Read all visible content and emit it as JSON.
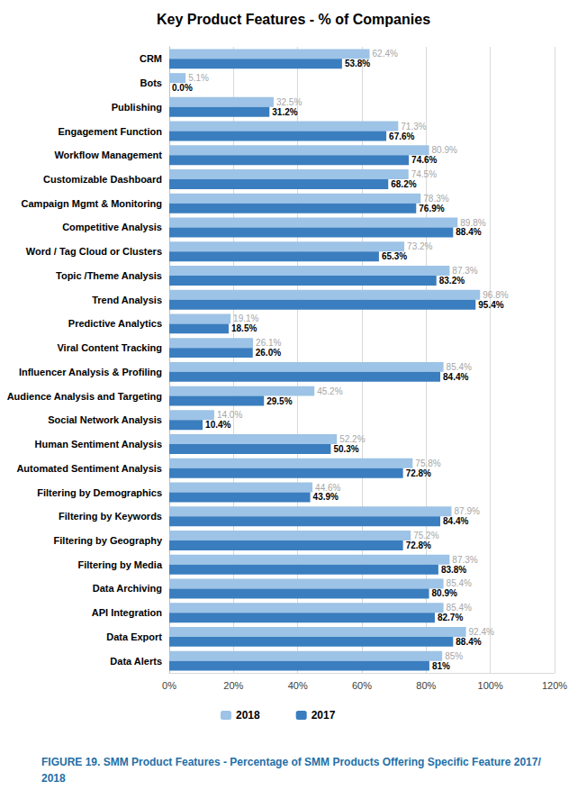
{
  "chart_data": {
    "type": "bar",
    "title": "Key Product Features - % of Companies",
    "annotations": [
      "FIGURE 19. SMM Product Features - Percentage of SMM Products Offering Specific Feature 2017/2018"
    ],
    "orientation": "horizontal",
    "grid": true,
    "legend": "bottom",
    "data_labels": true,
    "categories": [
      "CRM",
      "Bots",
      "Publishing",
      "Engagement Function",
      "Workflow Management",
      "Customizable Dashboard",
      "Campaign Mgmt & Monitoring",
      "Competitive Analysis",
      "Word / Tag Cloud or Clusters",
      "Topic /Theme Analysis",
      "Trend Analysis",
      "Predictive Analytics",
      "Viral Content Tracking",
      "Influencer Analysis & Profiling",
      "Audience Analysis and Targeting",
      "Social Network Analysis",
      "Human Sentiment Analysis",
      "Automated Sentiment Analysis",
      "Filtering by Demographics",
      "Filtering by Keywords",
      "Filtering by Geography",
      "Filtering by Media",
      "Data Archiving",
      "API Integration",
      "Data Export",
      "Data Alerts"
    ],
    "series": [
      {
        "name": "2018",
        "color": "#9dc3e6",
        "values": [
          62.4,
          5.1,
          32.5,
          71.3,
          80.9,
          74.5,
          78.3,
          89.8,
          73.2,
          87.3,
          96.8,
          19.1,
          26.1,
          85.4,
          45.2,
          14.0,
          52.2,
          75.8,
          44.6,
          87.9,
          75.2,
          87.3,
          85.4,
          85.4,
          92.4,
          85
        ],
        "value_labels": [
          "62.4%",
          "5.1%",
          "32.5%",
          "71.3%",
          "80.9%",
          "74.5%",
          "78.3%",
          "89.8%",
          "73.2%",
          "87.3%",
          "96.8%",
          "19.1%",
          "26.1%",
          "85.4%",
          "45.2%",
          "14.0%",
          "52.2%",
          "75.8%",
          "44.6%",
          "87.9%",
          "75.2%",
          "87.3%",
          "85.4%",
          "85.4%",
          "92.4%",
          "85%"
        ]
      },
      {
        "name": "2017",
        "color": "#3a7ebf",
        "values": [
          53.8,
          0.0,
          31.2,
          67.6,
          74.6,
          68.2,
          76.9,
          88.4,
          65.3,
          83.2,
          95.4,
          18.5,
          26.0,
          84.4,
          29.5,
          10.4,
          50.3,
          72.8,
          43.9,
          84.4,
          72.8,
          83.8,
          80.9,
          82.7,
          88.4,
          81
        ],
        "value_labels": [
          "53.8%",
          "0.0%",
          "31.2%",
          "67.6%",
          "74.6%",
          "68.2%",
          "76.9%",
          "88.4%",
          "65.3%",
          "83.2%",
          "95.4%",
          "18.5%",
          "26.0%",
          "84.4%",
          "29.5%",
          "10.4%",
          "50.3%",
          "72.8%",
          "43.9%",
          "84.4%",
          "72.8%",
          "83.8%",
          "80.9%",
          "82.7%",
          "88.4%",
          "81%"
        ]
      }
    ],
    "xlim": [
      0,
      120
    ],
    "xticks": [
      {
        "value": 0,
        "label": "0%"
      },
      {
        "value": 20,
        "label": "20%"
      },
      {
        "value": 40,
        "label": "40%"
      },
      {
        "value": 60,
        "label": "60%"
      },
      {
        "value": 80,
        "label": "80%"
      },
      {
        "value": 100,
        "label": "100%"
      },
      {
        "value": 120,
        "label": "120%"
      }
    ]
  }
}
